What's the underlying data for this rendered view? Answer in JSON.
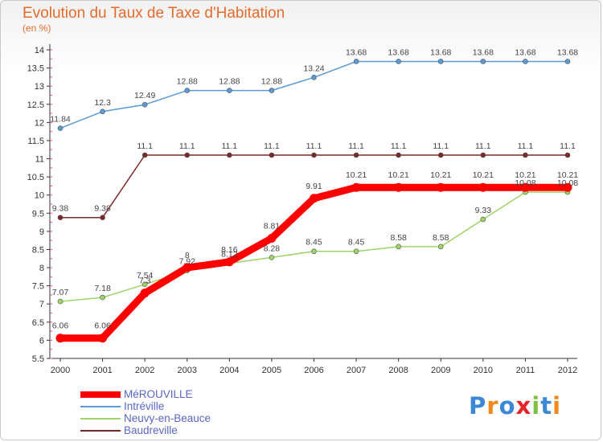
{
  "title": "Evolution du Taux de Taxe d'Habitation",
  "subtitle": "(en %)",
  "logo": {
    "text": "Proxiti",
    "colors": [
      "#3b88d6",
      "#f08a1c",
      "#3b88d6",
      "#e8262a",
      "#7cc142",
      "#3b88d6",
      "#f08a1c"
    ]
  },
  "chart_data": {
    "type": "line",
    "x": [
      "2000",
      "2001",
      "2002",
      "2003",
      "2004",
      "2005",
      "2006",
      "2007",
      "2008",
      "2009",
      "2010",
      "2011",
      "2012"
    ],
    "ylim": [
      5.5,
      14
    ],
    "yticks": [
      "5.5",
      "6",
      "6.5",
      "7",
      "7.5",
      "8",
      "8.5",
      "9",
      "9.5",
      "10",
      "10.5",
      "11",
      "11.5",
      "12",
      "12.5",
      "13",
      "13.5",
      "14"
    ],
    "grid": false,
    "legend_position": "bottom-left",
    "series": [
      {
        "name": "MéROUVILLE",
        "color": "#ff0000",
        "style": "thick",
        "values": [
          6.06,
          6.06,
          7.3,
          8.0,
          8.16,
          8.81,
          9.91,
          10.21,
          10.21,
          10.21,
          10.21,
          10.21,
          10.21
        ],
        "labels": [
          "6.06",
          "6.06",
          "7.3",
          "8",
          "8.16",
          "8.81",
          "9.91",
          "10.21",
          "10.21",
          "10.21",
          "10.21",
          "10.21",
          "10.21"
        ]
      },
      {
        "name": "Intréville",
        "color": "#5b9bd5",
        "style": "thin",
        "values": [
          11.84,
          12.3,
          12.49,
          12.88,
          12.88,
          12.88,
          13.24,
          13.68,
          13.68,
          13.68,
          13.68,
          13.68,
          13.68
        ],
        "labels": [
          "11.84",
          "12.3",
          "12.49",
          "12.88",
          "12.88",
          "12.88",
          "13.24",
          "13.68",
          "13.68",
          "13.68",
          "13.68",
          "13.68",
          "13.68"
        ]
      },
      {
        "name": "Neuvy-en-Beauce",
        "color": "#9ed468",
        "style": "thin",
        "values": [
          7.07,
          7.18,
          7.54,
          7.92,
          8.12,
          8.28,
          8.45,
          8.45,
          8.58,
          8.58,
          9.33,
          10.08,
          10.08
        ],
        "labels": [
          "7.07",
          "7.18",
          "7.54",
          "7.92",
          "8.12",
          "8.28",
          "8.45",
          "8.45",
          "8.58",
          "8.58",
          "9.33",
          "10.08",
          "10.08"
        ]
      },
      {
        "name": "Baudreville",
        "color": "#7a2828",
        "style": "thin",
        "values": [
          9.38,
          9.38,
          11.1,
          11.1,
          11.1,
          11.1,
          11.1,
          11.1,
          11.1,
          11.1,
          11.1,
          11.1,
          11.1
        ],
        "labels": [
          "9.38",
          "9.38",
          "11.1",
          "11.1",
          "11.1",
          "11.1",
          "11.1",
          "11.1",
          "11.1",
          "11.1",
          "11.1",
          "11.1",
          "11.1"
        ]
      }
    ]
  }
}
